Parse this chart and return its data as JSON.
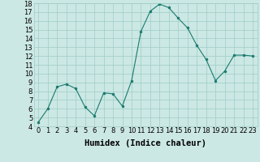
{
  "x": [
    0,
    1,
    2,
    3,
    4,
    5,
    6,
    7,
    8,
    9,
    10,
    11,
    12,
    13,
    14,
    15,
    16,
    17,
    18,
    19,
    20,
    21,
    22,
    23
  ],
  "y": [
    4.5,
    6.0,
    8.5,
    8.8,
    8.3,
    6.2,
    5.2,
    7.8,
    7.7,
    6.3,
    9.2,
    14.8,
    17.1,
    17.9,
    17.5,
    16.3,
    15.2,
    13.2,
    11.6,
    9.2,
    10.3,
    12.1,
    12.1,
    12.0
  ],
  "xlabel": "Humidex (Indice chaleur)",
  "ylim": [
    4,
    18
  ],
  "xlim_min": -0.5,
  "xlim_max": 23.5,
  "yticks": [
    4,
    5,
    6,
    7,
    8,
    9,
    10,
    11,
    12,
    13,
    14,
    15,
    16,
    17,
    18
  ],
  "xticks": [
    0,
    1,
    2,
    3,
    4,
    5,
    6,
    7,
    8,
    9,
    10,
    11,
    12,
    13,
    14,
    15,
    16,
    17,
    18,
    19,
    20,
    21,
    22,
    23
  ],
  "line_color": "#1a7a6e",
  "marker_color": "#1a7a6e",
  "bg_color": "#cce8e4",
  "grid_color": "#9eccc7",
  "xlabel_fontsize": 7.5,
  "tick_fontsize": 6.0
}
